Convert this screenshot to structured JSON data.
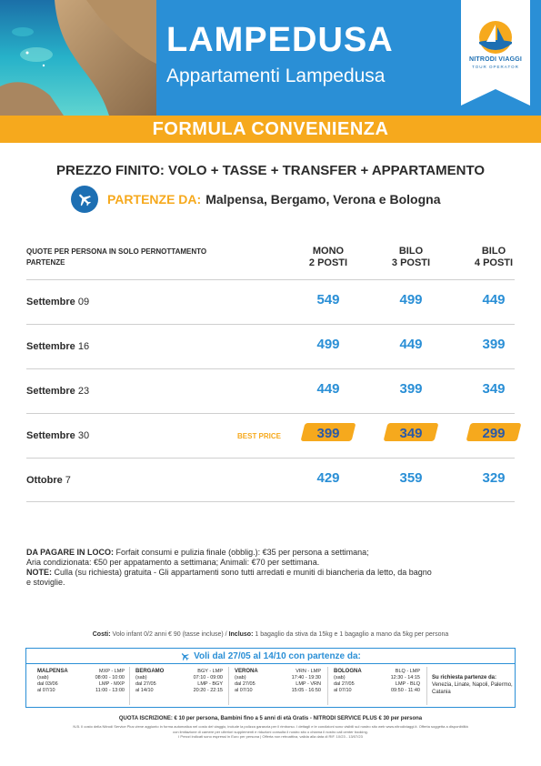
{
  "header": {
    "title": "LAMPEDUSA",
    "subtitle": "Appartamenti Lampedusa",
    "logo": {
      "name": "NITRODI VIAGGI",
      "tagline": "TOUR OPERATOR",
      "icon": "sailboat-sun-icon"
    }
  },
  "banner": "FORMULA CONVENIENZA",
  "headline": "PREZZO FINITO: VOLO + TASSE + TRANSFER + APPARTAMENTO",
  "departures": {
    "label": "PARTENZE DA:",
    "cities": "Malpensa, Bergamo, Verona e Bologna",
    "icon": "plane-icon"
  },
  "table": {
    "header_left_1": "QUOTE PER PERSONA IN SOLO PERNOTTAMENTO",
    "header_left_2": "PARTENZE",
    "columns": [
      {
        "line1": "MONO",
        "line2": "2 POSTI"
      },
      {
        "line1": "BILO",
        "line2": "3 POSTI"
      },
      {
        "line1": "BILO",
        "line2": "4 POSTI"
      }
    ],
    "best_price_label": "BEST PRICE",
    "rows": [
      {
        "month": "Settembre",
        "day": "09",
        "prices": [
          "549",
          "499",
          "449"
        ]
      },
      {
        "month": "Settembre",
        "day": "16",
        "prices": [
          "499",
          "449",
          "399"
        ]
      },
      {
        "month": "Settembre",
        "day": "23",
        "prices": [
          "449",
          "399",
          "349"
        ]
      },
      {
        "month": "Settembre",
        "day": "30",
        "prices": [
          "399",
          "349",
          "299"
        ]
      },
      {
        "month": "Ottobre",
        "day": "7",
        "prices": [
          "429",
          "359",
          "329"
        ]
      }
    ]
  },
  "notes": {
    "loco_label": "DA PAGARE IN LOCO:",
    "loco_text": "Forfait consumi e pulizia finale (obblig.): €35 per persona a settimana;",
    "aria_text": "Aria condizionata: €50 per appatamento a settimana; Animali: €70 per settimana.",
    "note_label": "NOTE:",
    "note_text": "Culla (su richiesta) gratuita - Gli appartamenti sono tutti arredati e muniti di biancheria da letto, da bagno",
    "note_text_2": "e stoviglie."
  },
  "costs": {
    "label": "Costi:",
    "text": "Volo infant 0/2 anni € 90 (tasse incluse)  /",
    "incluso_label": "Incluso:",
    "incluso_text": "1 bagaglio da stiva da 15kg e 1 bagaglio a mano da 5kg per persona"
  },
  "flights": {
    "title": "Voli dal 27/05 al 14/10 con partenze da:",
    "airports": [
      {
        "name": "MALPENSA",
        "l1": "(sab)",
        "l2": "dal 03/06",
        "l3": "al 07/10",
        "t1": "MXP - LMP",
        "t2": "08:00 - 10:00",
        "t3": "LMP - MXP",
        "t4": "11:00 - 13:00"
      },
      {
        "name": "BERGAMO",
        "l1": "(sab)",
        "l2": "dal 27/05",
        "l3": "al 14/10",
        "t1": "BGY - LMP",
        "t2": "07:10 - 09:00",
        "t3": "LMP - BGY",
        "t4": "20:20 - 22:15"
      },
      {
        "name": "VERONA",
        "l1": "(sab)",
        "l2": "dal 27/05",
        "l3": "al 07/10",
        "t1": "VRN - LMP",
        "t2": "17:40 - 19:30",
        "t3": "LMP - VRN",
        "t4": "15:05 - 16:50"
      },
      {
        "name": "BOLOGNA",
        "l1": "(sab)",
        "l2": "dal 27/05",
        "l3": "al 07/10",
        "t1": "BLQ - LMP",
        "t2": "12:30 - 14:15",
        "t3": "LMP - BLQ",
        "t4": "09:50 - 11:40"
      }
    ],
    "request_label": "Su richiesta partenze da:",
    "request_cities": "Venezia, Linate, Napoli, Palermo, Catania"
  },
  "footer": {
    "line1": "QUOTA ISCRIZIONE: € 10 per persona, Bambini fino a 5 anni di età Gratis - NITRODI SERVICE PLUS € 30 per persona",
    "line2": "N.B. Il costo della Nitrodi Service Plus viene aggiunto in forma automatica nel costo del viaggio, include la polizza garanzia per il rimborso. I dettagli e le condizioni sono visibili sul nostro sito web www.nitrodiviaggi.it. Offerta soggetta a disponibilità",
    "line3": "con limitazione di camere per ulteriori supplementi e riduzioni consulta il nostro sito o chiama il nostro call center booking.",
    "line4": "I Prezzi indicati sono espressi in Euro per persona | Offerta non retroattiva, valida alla data di RIF. 10/23 - 13/07/23"
  },
  "colors": {
    "blue": "#2a8fd6",
    "orange": "#f6a91d",
    "dark": "#2b2b2b"
  }
}
